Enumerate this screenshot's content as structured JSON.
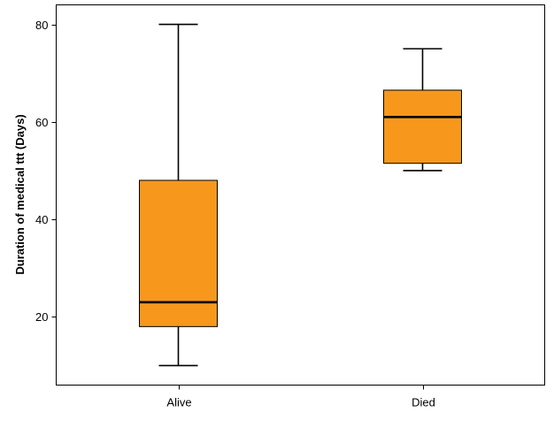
{
  "chart_data": {
    "type": "boxplot",
    "title": "",
    "xlabel": "",
    "ylabel": "Duration of medical ttt (Days)",
    "categories": [
      "Alive",
      "Died"
    ],
    "boxes": [
      {
        "category": "Alive",
        "min": 10,
        "q1": 18,
        "median": 23,
        "q3": 48,
        "max": 80
      },
      {
        "category": "Died",
        "min": 50,
        "q1": 51.5,
        "median": 61,
        "q3": 66.5,
        "max": 75
      }
    ],
    "ylim": [
      6,
      84
    ],
    "yticks": [
      20,
      40,
      60,
      80
    ],
    "grid": false,
    "box_color": "#f7981d",
    "line_color": "#000000"
  }
}
